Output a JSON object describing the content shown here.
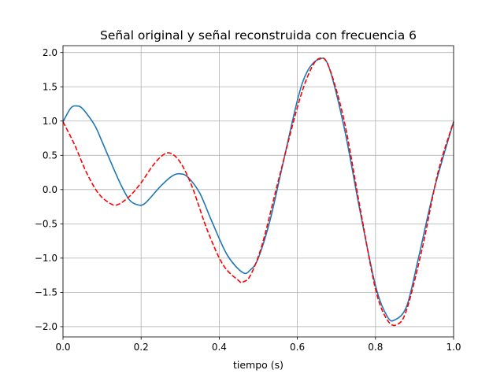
{
  "chart_data": {
    "type": "line",
    "title": "Señal original y señal reconstruida con frecuencia 6",
    "xlabel": "tiempo (s)",
    "ylabel": "",
    "xlim": [
      0.0,
      1.0
    ],
    "ylim": [
      -2.15,
      2.1
    ],
    "xticks": [
      0.0,
      0.2,
      0.4,
      0.6,
      0.8,
      1.0
    ],
    "xtick_labels": [
      "0.0",
      "0.2",
      "0.4",
      "0.6",
      "0.8",
      "1.0"
    ],
    "yticks": [
      -2.0,
      -1.5,
      -1.0,
      -0.5,
      0.0,
      0.5,
      1.0,
      1.5,
      2.0
    ],
    "ytick_labels": [
      "−2.0",
      "−1.5",
      "−1.0",
      "−0.5",
      "0.0",
      "0.5",
      "1.0",
      "1.5",
      "2.0"
    ],
    "grid": true,
    "legend": "none",
    "series": [
      {
        "color": "#1f77b4",
        "style": "solid",
        "x": [
          0.0,
          0.02,
          0.035,
          0.05,
          0.08,
          0.1,
          0.13,
          0.15,
          0.17,
          0.19,
          0.21,
          0.25,
          0.28,
          0.3,
          0.32,
          0.35,
          0.38,
          0.42,
          0.46,
          0.48,
          0.5,
          0.53,
          0.56,
          0.6,
          0.625,
          0.655,
          0.68,
          0.72,
          0.76,
          0.8,
          0.83,
          0.85,
          0.88,
          0.91,
          0.95,
          1.0
        ],
        "values": [
          0.99,
          1.19,
          1.22,
          1.18,
          0.95,
          0.7,
          0.3,
          0.05,
          -0.15,
          -0.22,
          -0.2,
          0.05,
          0.2,
          0.23,
          0.18,
          -0.05,
          -0.45,
          -0.95,
          -1.21,
          -1.17,
          -1.0,
          -0.45,
          0.3,
          1.3,
          1.72,
          1.9,
          1.8,
          0.9,
          -0.3,
          -1.4,
          -1.85,
          -1.9,
          -1.7,
          -1.0,
          0.0,
          0.99
        ]
      },
      {
        "color": "#ff0000",
        "style": "dashed",
        "x": [
          0.0,
          0.03,
          0.06,
          0.09,
          0.12,
          0.14,
          0.17,
          0.2,
          0.23,
          0.255,
          0.275,
          0.3,
          0.33,
          0.37,
          0.41,
          0.45,
          0.46,
          0.48,
          0.51,
          0.55,
          0.6,
          0.63,
          0.655,
          0.68,
          0.72,
          0.76,
          0.8,
          0.83,
          0.855,
          0.88,
          0.92,
          0.96,
          1.0
        ],
        "values": [
          0.99,
          0.65,
          0.25,
          -0.05,
          -0.2,
          -0.22,
          -0.1,
          0.1,
          0.35,
          0.5,
          0.53,
          0.4,
          0.05,
          -0.6,
          -1.1,
          -1.33,
          -1.35,
          -1.25,
          -0.8,
          0.1,
          1.2,
          1.7,
          1.91,
          1.8,
          1.0,
          -0.25,
          -1.45,
          -1.9,
          -1.97,
          -1.75,
          -0.85,
          0.25,
          0.99
        ]
      }
    ]
  }
}
